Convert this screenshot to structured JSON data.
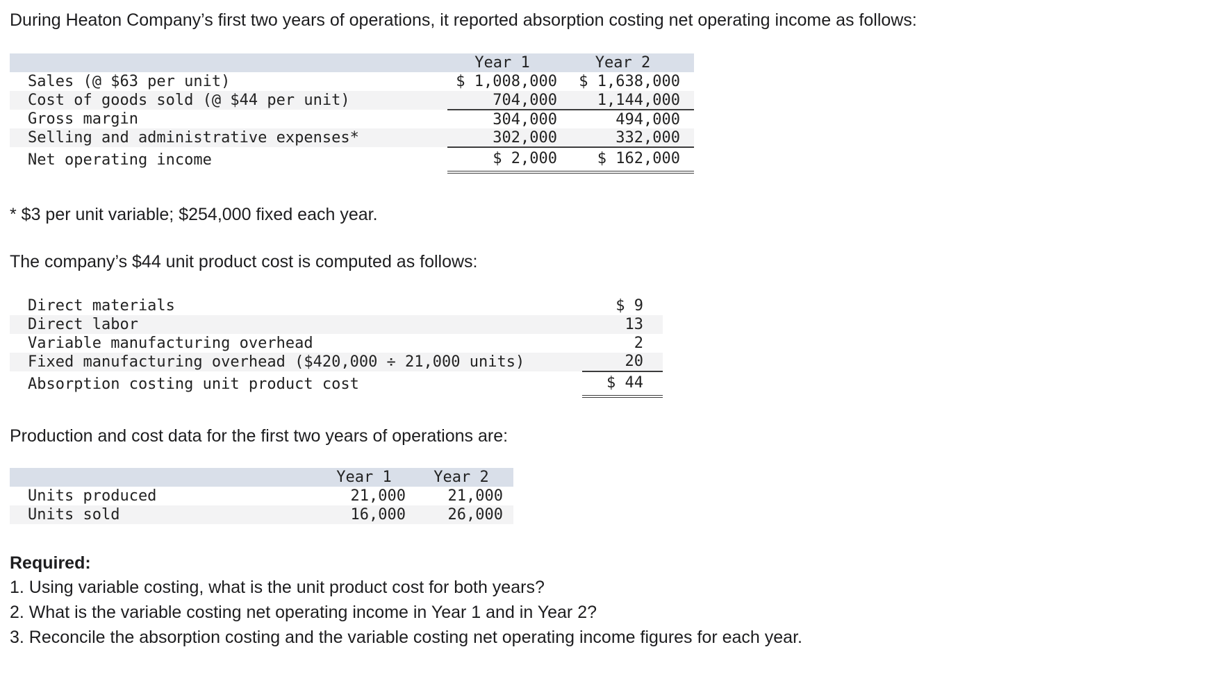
{
  "colors": {
    "header-bg": "#d9dfe9",
    "stripe": "#f3f3f4",
    "rule": "#3c3c3c",
    "text": "#1d1d1f"
  },
  "intro": "During Heaton Company’s first two years of operations, it reported absorption costing net operating income as follows:",
  "income_table": {
    "col_headers": [
      "Year 1",
      "Year 2"
    ],
    "rows": [
      {
        "label": "Sales (@ $63 per unit)",
        "year1": "$ 1,008,000",
        "year2": "$ 1,638,000"
      },
      {
        "label": "Cost of goods sold (@ $44 per unit)",
        "year1": "704,000",
        "year2": "1,144,000"
      },
      {
        "label": "Gross margin",
        "year1": "304,000",
        "year2": "494,000"
      },
      {
        "label": "Selling and administrative expenses*",
        "year1": "302,000",
        "year2": "332,000"
      },
      {
        "label": "Net operating income",
        "year1": "$ 2,000",
        "year2": "$ 162,000"
      }
    ]
  },
  "footnote": "* $3 per unit variable; $254,000 fixed each year.",
  "unit_cost_intro": "The company’s $44 unit product cost is computed as follows:",
  "unit_cost_table": {
    "rows": [
      {
        "label": "Direct materials",
        "amount": "$ 9"
      },
      {
        "label": "Direct labor",
        "amount": "13"
      },
      {
        "label": "Variable manufacturing overhead",
        "amount": "2"
      },
      {
        "label": "Fixed manufacturing overhead ($420,000 ÷ 21,000 units)",
        "amount": "20"
      },
      {
        "label": "Absorption costing unit product cost",
        "amount": "$ 44"
      }
    ]
  },
  "production_intro": "Production and cost data for the first two years of operations are:",
  "production_table": {
    "col_headers": [
      "Year 1",
      "Year 2"
    ],
    "rows": [
      {
        "label": "Units produced",
        "year1": "21,000",
        "year2": "21,000"
      },
      {
        "label": "Units sold",
        "year1": "16,000",
        "year2": "26,000"
      }
    ]
  },
  "required": {
    "title": "Required:",
    "items": [
      "1. Using variable costing, what is the unit product cost for both years?",
      "2. What is the variable costing net operating income in Year 1 and in Year 2?",
      "3. Reconcile the absorption costing and the variable costing net operating income figures for each year."
    ]
  }
}
